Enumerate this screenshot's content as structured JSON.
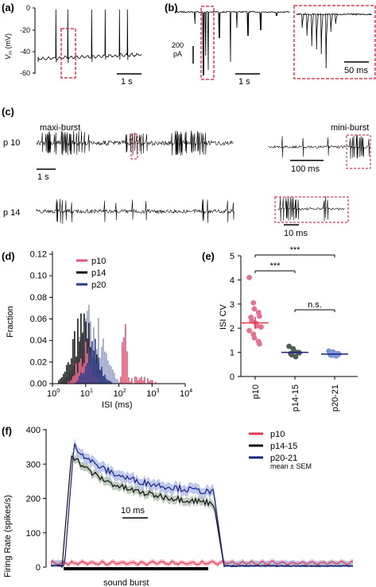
{
  "panels": {
    "a": {
      "label": "(a)",
      "ylabel_prefix": "V",
      "ylabel_sub": "m",
      "ylabel_unit": " (mV)",
      "yticks": [
        "0",
        "-20",
        "-40",
        "-60"
      ],
      "scalebar": "1 s",
      "trace_color": "#000000",
      "highlight_color": "#e8384f"
    },
    "b": {
      "label": "(b)",
      "scale_value": "200",
      "scale_unit": "pA",
      "scalebar_time": "1 s",
      "inset_scalebar": "50 ms"
    },
    "c": {
      "label": "(c)",
      "maxi_title": "maxi-burst",
      "mini_title": "mini-burst",
      "row1": "p 10",
      "row2": "p 14",
      "scalebar_1s": "1 s",
      "scalebar_100ms": "100 ms",
      "scalebar_10ms": "10 ms"
    },
    "d": {
      "label": "(d)"
    },
    "e": {
      "label": "(e)"
    },
    "f": {
      "label": "(f)"
    }
  },
  "chart_data": [
    {
      "panel": "d",
      "type": "bar",
      "xlabel": "ISI (ms)",
      "ylabel": "Fraction",
      "xscale": "log",
      "xlim": [
        1,
        10000
      ],
      "ylim": [
        0,
        0.12
      ],
      "xtick_labels": [
        "10",
        "1",
        "10",
        "2",
        "10",
        "3",
        "10",
        "4"
      ],
      "xticks": [
        {
          "base": "10",
          "exp": "0"
        },
        {
          "base": "10",
          "exp": "1"
        },
        {
          "base": "10",
          "exp": "2"
        },
        {
          "base": "10",
          "exp": "3"
        },
        {
          "base": "10",
          "exp": "4"
        }
      ],
      "yticks": [
        "0.00",
        "0.02",
        "0.04",
        "0.06",
        "0.08",
        "0.10",
        "0.12"
      ],
      "legend_position": "top-left",
      "series": [
        {
          "name": "p10",
          "color": "#e8557a"
        },
        {
          "name": "p14",
          "color": "#111111"
        },
        {
          "name": "p20",
          "color": "#2a3a8c"
        }
      ]
    },
    {
      "panel": "e",
      "type": "scatter",
      "ylabel": "ISI CV",
      "ylim": [
        0,
        5
      ],
      "yticks": [
        "0",
        "1",
        "2",
        "3",
        "4",
        "5"
      ],
      "categories": [
        "p10",
        "p14-15",
        "p20-21"
      ],
      "means": [
        2.22,
        1.0,
        0.93
      ],
      "series": [
        {
          "name": "p10",
          "color": "#e8708f",
          "values": [
            4.1,
            3.05,
            2.8,
            2.65,
            2.5,
            2.45,
            2.3,
            2.2,
            2.1,
            2.05,
            1.9,
            1.75,
            1.6,
            1.45,
            1.35
          ]
        },
        {
          "name": "p14-15",
          "color": "#4f5f57",
          "values": [
            1.25,
            1.15,
            1.05,
            1.0,
            0.98,
            0.95,
            0.9,
            0.82
          ]
        },
        {
          "name": "p20-21",
          "color": "#7a98d8",
          "values": [
            1.05,
            1.02,
            0.98,
            0.95,
            0.93,
            0.9,
            0.88,
            0.86,
            0.85
          ]
        }
      ],
      "significance": [
        {
          "from": "p10",
          "to": "p14-15",
          "text": "***"
        },
        {
          "from": "p10",
          "to": "p20-21",
          "text": "***"
        },
        {
          "from": "p14-15",
          "to": "p20-21",
          "text": "n.s."
        }
      ]
    },
    {
      "panel": "f",
      "type": "line",
      "ylabel": "Firing Rate (spikes/s)",
      "ylim": [
        0,
        400
      ],
      "yticks": [
        "0",
        "100",
        "200",
        "300",
        "400"
      ],
      "annotation": "mean ± SEM",
      "scalebar": "10 ms",
      "stimulus_label": "sound burst",
      "legend_position": "top-right",
      "series": [
        {
          "name": "p10",
          "color": "#e8384f",
          "band_color": "#f5a8b8"
        },
        {
          "name": "p14-15",
          "color": "#111111",
          "band_color": "#a8b8a8"
        },
        {
          "name": "p20-21",
          "color": "#1a237e",
          "band_color": "#a9b7e8"
        }
      ]
    }
  ]
}
